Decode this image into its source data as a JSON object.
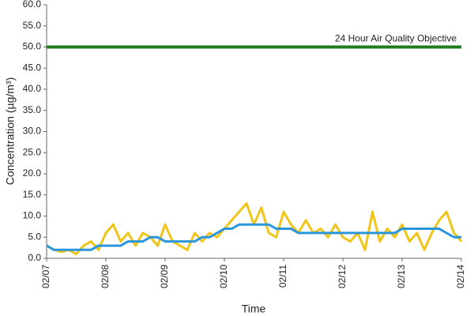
{
  "chart_data": {
    "type": "line",
    "x_label": "Time",
    "y_label": "Concentration (µg/m³)",
    "x": [
      0,
      3,
      6,
      9,
      12,
      15,
      18,
      21,
      24,
      27,
      30,
      33,
      36,
      39,
      42,
      45,
      48,
      51,
      54,
      57,
      60,
      63,
      66,
      69,
      72,
      75,
      78,
      81,
      84,
      87,
      90,
      93,
      96,
      99,
      102,
      105,
      108,
      111,
      114,
      117,
      120,
      123,
      126,
      129,
      132,
      135,
      138,
      141,
      144,
      147,
      150,
      153,
      156,
      159,
      162,
      165,
      168
    ],
    "series": [
      {
        "color": "#f0c419",
        "values": [
          3,
          2,
          1.5,
          2,
          1,
          3,
          4,
          2,
          6,
          8,
          4,
          6,
          3,
          6,
          5,
          3,
          8,
          4,
          3,
          2,
          6,
          4,
          6,
          5,
          7,
          9,
          11,
          13,
          8,
          12,
          6,
          5,
          11,
          8,
          6,
          9,
          6,
          7,
          5,
          8,
          5,
          4,
          6,
          2,
          11,
          4,
          7,
          5,
          8,
          4,
          6,
          2,
          6,
          9,
          11,
          6,
          4
        ]
      },
      {
        "color": "#2b95dc",
        "values": [
          3,
          2,
          2,
          2,
          2,
          2,
          2,
          3,
          3,
          3,
          3,
          4,
          4,
          4,
          5,
          5,
          4,
          4,
          4,
          4,
          4,
          5,
          5,
          6,
          7,
          7,
          8,
          8,
          8,
          8,
          8,
          7,
          7,
          7,
          6,
          6,
          6,
          6,
          6,
          6,
          6,
          6,
          6,
          6,
          6,
          6,
          6,
          6,
          7,
          7,
          7,
          7,
          7,
          7,
          6,
          5,
          5
        ]
      }
    ],
    "hlines": [
      {
        "value": 50,
        "label": "24 Hour Air Quality Objective",
        "color": "#1e7b1e"
      }
    ],
    "xlim": [
      0,
      168
    ],
    "xticks": [
      {
        "value": 0,
        "label": "02/07"
      },
      {
        "value": 24,
        "label": "02/08"
      },
      {
        "value": 48,
        "label": "02/09"
      },
      {
        "value": 72,
        "label": "02/10"
      },
      {
        "value": 96,
        "label": "02/11"
      },
      {
        "value": 120,
        "label": "02/12"
      },
      {
        "value": 144,
        "label": "02/13"
      },
      {
        "value": 168,
        "label": "02/14"
      }
    ],
    "ylim": [
      0,
      60
    ],
    "yticks": [
      {
        "value": 0,
        "label": "0.0"
      },
      {
        "value": 5,
        "label": "5.0"
      },
      {
        "value": 10,
        "label": "10.0"
      },
      {
        "value": 15,
        "label": "15.0"
      },
      {
        "value": 20,
        "label": "20.0"
      },
      {
        "value": 25,
        "label": "25.0"
      },
      {
        "value": 30,
        "label": "30.0"
      },
      {
        "value": 35,
        "label": "35.0"
      },
      {
        "value": 40,
        "label": "40.0"
      },
      {
        "value": 45,
        "label": "45.0"
      },
      {
        "value": 50,
        "label": "50.0"
      },
      {
        "value": 55,
        "label": "55.0"
      },
      {
        "value": 60,
        "label": "60.0"
      }
    ],
    "grid": false
  }
}
